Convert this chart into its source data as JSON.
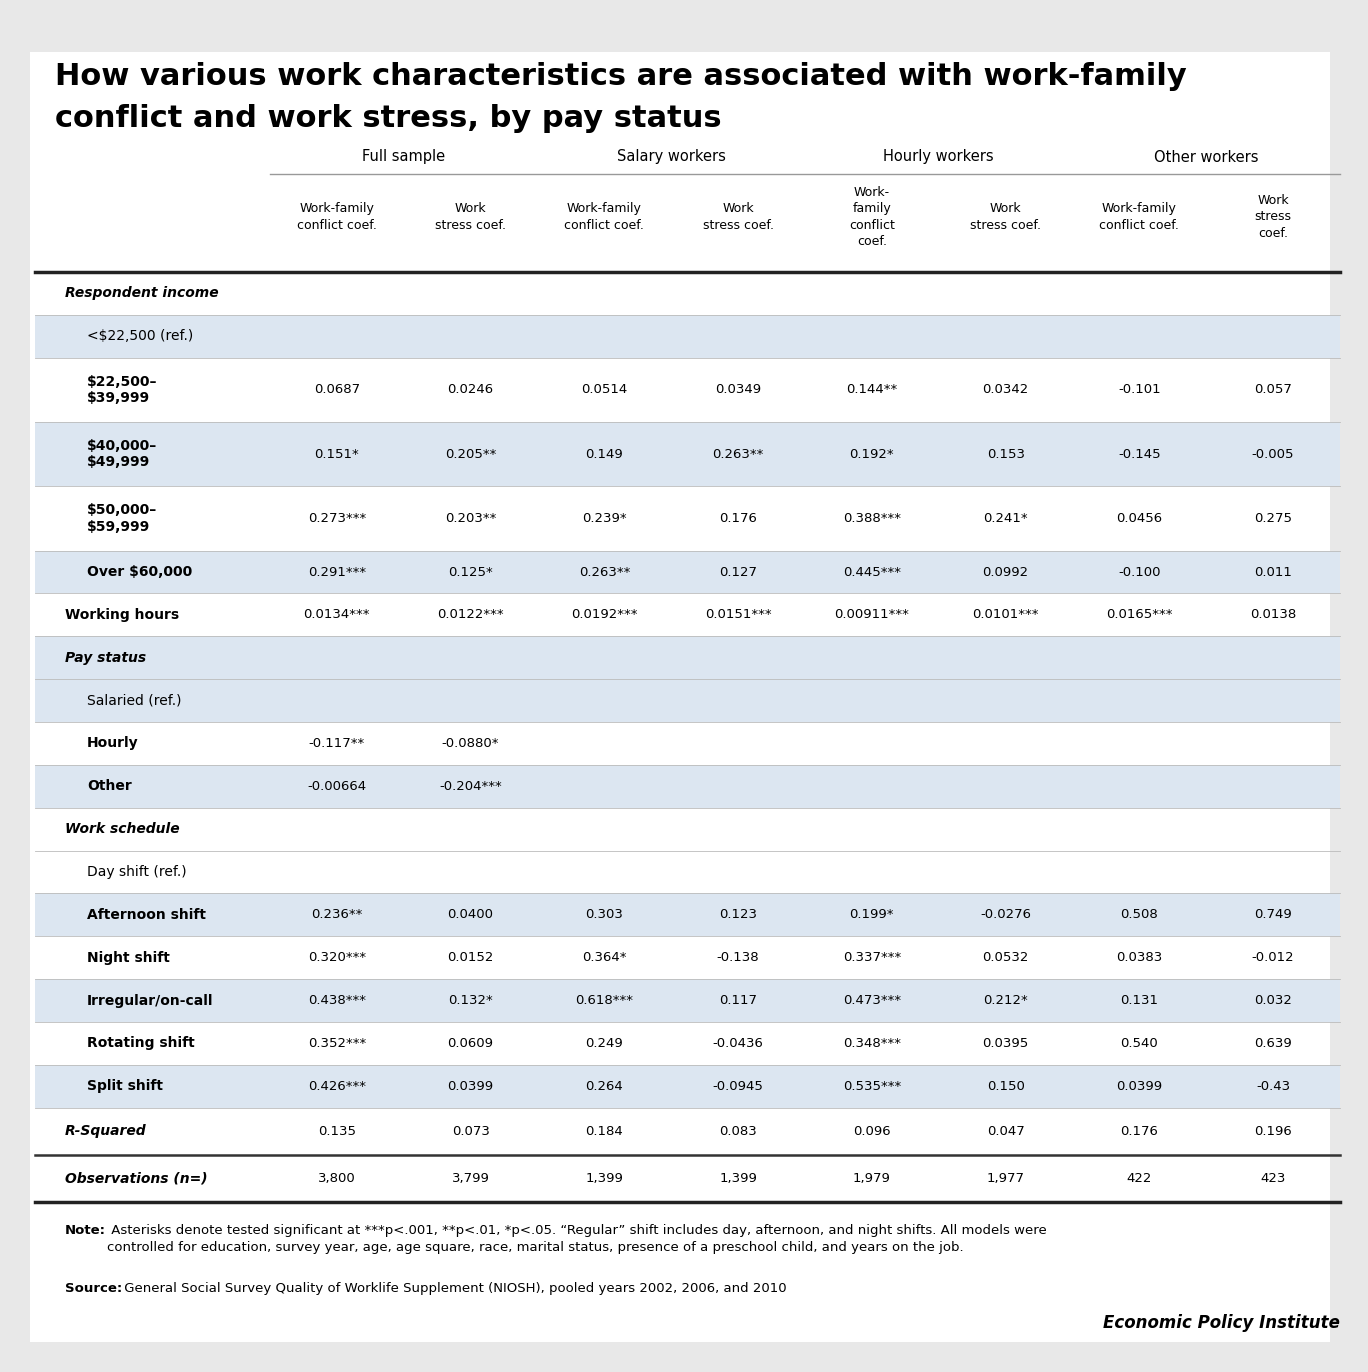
{
  "title_line1": "How various work characteristics are associated with work-family",
  "title_line2": "conflict and work stress, by pay status",
  "col_headers": [
    "Work-family\nconflict coef.",
    "Work\nstress coef.",
    "Work-family\nconflict coef.",
    "Work\nstress coef.",
    "Work-\nfamily\nconflict\ncoef.",
    "Work\nstress coef.",
    "Work-family\nconflict coef.",
    "Work\nstress\ncoef."
  ],
  "rows": [
    {
      "label": "Respondent income",
      "indent": 0,
      "italic": true,
      "bold": true,
      "values": [
        "",
        "",
        "",
        "",
        "",
        "",
        "",
        ""
      ],
      "shaded": false,
      "section_header": true
    },
    {
      "label": "<$22,500 (ref.)",
      "indent": 1,
      "italic": false,
      "bold": false,
      "values": [
        "",
        "",
        "",
        "",
        "",
        "",
        "",
        ""
      ],
      "shaded": true
    },
    {
      "label": "$22,500–\n$39,999",
      "indent": 1,
      "italic": false,
      "bold": true,
      "values": [
        "0.0687",
        "0.0246",
        "0.0514",
        "0.0349",
        "0.144**",
        "0.0342",
        "-0.101",
        "0.057"
      ],
      "shaded": false
    },
    {
      "label": "$40,000–\n$49,999",
      "indent": 1,
      "italic": false,
      "bold": true,
      "values": [
        "0.151*",
        "0.205**",
        "0.149",
        "0.263**",
        "0.192*",
        "0.153",
        "-0.145",
        "-0.005"
      ],
      "shaded": true
    },
    {
      "label": "$50,000–\n$59,999",
      "indent": 1,
      "italic": false,
      "bold": true,
      "values": [
        "0.273***",
        "0.203**",
        "0.239*",
        "0.176",
        "0.388***",
        "0.241*",
        "0.0456",
        "0.275"
      ],
      "shaded": false
    },
    {
      "label": "Over $60,000",
      "indent": 1,
      "italic": false,
      "bold": true,
      "values": [
        "0.291***",
        "0.125*",
        "0.263**",
        "0.127",
        "0.445***",
        "0.0992",
        "-0.100",
        "0.011"
      ],
      "shaded": true
    },
    {
      "label": "Working hours",
      "indent": 0,
      "italic": true,
      "bold": true,
      "values": [
        "0.0134***",
        "0.0122***",
        "0.0192***",
        "0.0151***",
        "0.00911***",
        "0.0101***",
        "0.0165***",
        "0.0138"
      ],
      "shaded": false
    },
    {
      "label": "Pay status",
      "indent": 0,
      "italic": true,
      "bold": true,
      "values": [
        "",
        "",
        "",
        "",
        "",
        "",
        "",
        ""
      ],
      "shaded": true,
      "section_header": true
    },
    {
      "label": "Salaried (ref.)",
      "indent": 1,
      "italic": false,
      "bold": false,
      "values": [
        "",
        "",
        "",
        "",
        "",
        "",
        "",
        ""
      ],
      "shaded": true
    },
    {
      "label": "Hourly",
      "indent": 1,
      "italic": false,
      "bold": true,
      "values": [
        "-0.117**",
        "-0.0880*",
        "",
        "",
        "",
        "",
        "",
        ""
      ],
      "shaded": false
    },
    {
      "label": "Other",
      "indent": 1,
      "italic": false,
      "bold": true,
      "values": [
        "-0.00664",
        "-0.204***",
        "",
        "",
        "",
        "",
        "",
        ""
      ],
      "shaded": true
    },
    {
      "label": "Work schedule",
      "indent": 0,
      "italic": true,
      "bold": true,
      "values": [
        "",
        "",
        "",
        "",
        "",
        "",
        "",
        ""
      ],
      "shaded": false,
      "section_header": true
    },
    {
      "label": "Day shift (ref.)",
      "indent": 1,
      "italic": false,
      "bold": false,
      "values": [
        "",
        "",
        "",
        "",
        "",
        "",
        "",
        ""
      ],
      "shaded": false
    },
    {
      "label": "Afternoon shift",
      "indent": 1,
      "italic": false,
      "bold": true,
      "values": [
        "0.236**",
        "0.0400",
        "0.303",
        "0.123",
        "0.199*",
        "-0.0276",
        "0.508",
        "0.749"
      ],
      "shaded": true
    },
    {
      "label": "Night shift",
      "indent": 1,
      "italic": false,
      "bold": true,
      "values": [
        "0.320***",
        "0.0152",
        "0.364*",
        "-0.138",
        "0.337***",
        "0.0532",
        "0.0383",
        "-0.012"
      ],
      "shaded": false
    },
    {
      "label": "Irregular/on-call",
      "indent": 1,
      "italic": false,
      "bold": true,
      "values": [
        "0.438***",
        "0.132*",
        "0.618***",
        "0.117",
        "0.473***",
        "0.212*",
        "0.131",
        "0.032"
      ],
      "shaded": true
    },
    {
      "label": "Rotating shift",
      "indent": 1,
      "italic": false,
      "bold": true,
      "values": [
        "0.352***",
        "0.0609",
        "0.249",
        "-0.0436",
        "0.348***",
        "0.0395",
        "0.540",
        "0.639"
      ],
      "shaded": false
    },
    {
      "label": "Split shift",
      "indent": 1,
      "italic": false,
      "bold": true,
      "values": [
        "0.426***",
        "0.0399",
        "0.264",
        "-0.0945",
        "0.535***",
        "0.150",
        "0.0399",
        "-0.43"
      ],
      "shaded": true
    },
    {
      "label": "R-Squared",
      "indent": 0,
      "italic": true,
      "bold": true,
      "values": [
        "0.135",
        "0.073",
        "0.184",
        "0.083",
        "0.096",
        "0.047",
        "0.176",
        "0.196"
      ],
      "shaded": false,
      "is_rsquared": true
    },
    {
      "label": "Observations (n=)",
      "indent": 0,
      "italic": true,
      "bold": true,
      "values": [
        "3,800",
        "3,799",
        "1,399",
        "1,399",
        "1,979",
        "1,977",
        "422",
        "423"
      ],
      "shaded": false,
      "is_obs": true
    }
  ],
  "bg_color": "#e8e8e8",
  "shaded_color": "#dce6f1",
  "epi_text": "Economic Policy Institute"
}
